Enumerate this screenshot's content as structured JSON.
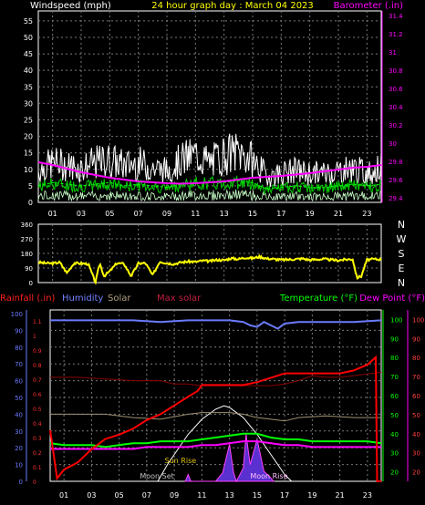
{
  "chart_data": [
    {
      "type": "line",
      "title": "24 hour graph day : March 04 2023",
      "ylabel": "Windspeed (mph)",
      "y2label": "Barometer (.in)",
      "ylim": [
        0,
        58
      ],
      "y2lim": [
        29.35,
        31.45
      ],
      "yticks": [
        0,
        5,
        10,
        15,
        20,
        25,
        30,
        35,
        40,
        45,
        50,
        55
      ],
      "y2ticks": [
        "29.4",
        "29.6",
        "29.8",
        "30",
        "30.2",
        "30.4",
        "30.6",
        "30.8",
        "31",
        "31.2",
        "31.4"
      ],
      "xlabels": [
        "01",
        "03",
        "05",
        "07",
        "09",
        "11",
        "13",
        "15",
        "17",
        "19",
        "21",
        "23"
      ],
      "grid": true,
      "colors": {
        "gust": "#ffffff",
        "avg": "#00cc00",
        "baro": "#ff00ff",
        "grid": "#7a7a7a",
        "axis": "#ffff00"
      },
      "series": [
        {
          "name": "",
          "kind": "gust",
          "x": [
            0,
            1,
            2,
            3,
            4,
            5,
            6,
            7,
            8,
            9,
            10,
            11,
            12,
            13,
            14,
            15,
            16,
            17,
            18,
            19,
            20,
            21,
            22,
            23,
            24
          ],
          "values": [
            12,
            15,
            14,
            13,
            15,
            16,
            14,
            15,
            13,
            12,
            16,
            18,
            15,
            18,
            19,
            16,
            10,
            11,
            12,
            11,
            11,
            12,
            13,
            11,
            13
          ]
        },
        {
          "name": "",
          "kind": "avg",
          "x": [
            0,
            1,
            2,
            3,
            4,
            5,
            6,
            7,
            8,
            9,
            10,
            11,
            12,
            13,
            14,
            15,
            16,
            17,
            18,
            19,
            20,
            21,
            22,
            23,
            24
          ],
          "values": [
            5,
            6,
            5.5,
            5,
            5.5,
            6,
            5,
            5.5,
            5,
            4.5,
            5.5,
            6,
            6,
            6,
            6.5,
            6,
            4,
            4.5,
            5,
            4.5,
            4.5,
            5,
            5.5,
            5,
            5.5
          ]
        },
        {
          "name": "",
          "kind": "baro",
          "axis": "y2",
          "x": [
            0,
            1,
            2,
            3,
            4,
            5,
            6,
            7,
            8,
            9,
            10,
            11,
            12,
            13,
            14,
            15,
            16,
            17,
            18,
            19,
            20,
            21,
            22,
            23,
            24
          ],
          "values": [
            29.79,
            29.76,
            29.72,
            29.68,
            29.65,
            29.62,
            29.6,
            29.58,
            29.57,
            29.56,
            29.555,
            29.56,
            29.57,
            29.58,
            29.6,
            29.62,
            29.63,
            29.64,
            29.655,
            29.67,
            29.69,
            29.71,
            29.73,
            29.74,
            29.76
          ]
        }
      ]
    },
    {
      "type": "line",
      "title": "",
      "ylim": [
        0,
        360
      ],
      "yticks": [
        0,
        90,
        180,
        270,
        360
      ],
      "direction_labels": [
        "N",
        "W",
        "S",
        "E",
        "N"
      ],
      "xlabels": [
        "01",
        "03",
        "05",
        "07",
        "09",
        "11",
        "13",
        "15",
        "17",
        "19",
        "21",
        "23"
      ],
      "colors": {
        "dir": "#ffff00"
      },
      "series": [
        {
          "name": "",
          "kind": "wind-direction",
          "x": [
            0,
            0.5,
            1,
            1.5,
            2,
            2.5,
            3,
            3.5,
            4,
            4.3,
            4.6,
            5,
            5.5,
            6,
            6.5,
            7,
            7.5,
            8,
            8.5,
            9,
            9.5,
            10,
            10.5,
            11,
            11.5,
            12,
            12.5,
            13,
            13.5,
            14,
            14.5,
            15,
            15.5,
            16,
            16.5,
            17,
            17.5,
            18,
            18.5,
            19,
            19.5,
            20,
            20.5,
            21,
            21.5,
            22,
            22.3,
            22.6,
            23,
            23.5,
            24
          ],
          "values": [
            125,
            120,
            118,
            125,
            60,
            120,
            118,
            115,
            0,
            120,
            40,
            70,
            120,
            115,
            40,
            118,
            120,
            45,
            130,
            120,
            115,
            125,
            130,
            128,
            135,
            132,
            140,
            138,
            150,
            145,
            155,
            150,
            160,
            148,
            145,
            140,
            142,
            145,
            148,
            140,
            143,
            145,
            140,
            138,
            142,
            145,
            30,
            40,
            140,
            145,
            143
          ]
        }
      ]
    },
    {
      "type": "line",
      "legend": [
        "Rainfall (.in)",
        "Humidity",
        "Solar",
        "Max solar",
        "Temperature (°F)",
        "Dew Point (°F)"
      ],
      "ylim_left": [
        0,
        100
      ],
      "yticks_left": [
        0,
        10,
        20,
        30,
        40,
        50,
        60,
        70,
        80,
        90,
        100
      ],
      "ylim_rain": [
        0,
        1.15
      ],
      "yticks_rain": [
        "0",
        "0.1",
        "0.2",
        "0.3",
        "0.4",
        "0.5",
        "0.6",
        "0.7",
        "0.8",
        "0.9",
        "1",
        "1.1"
      ],
      "ylim_temp": [
        15,
        105
      ],
      "yticks_temp": [
        20,
        30,
        40,
        50,
        60,
        70,
        80,
        90,
        100
      ],
      "yticks_temp2": [
        20,
        30,
        40,
        50,
        60,
        70,
        80,
        90,
        100
      ],
      "xlabels": [
        "01",
        "03",
        "05",
        "07",
        "09",
        "11",
        "13",
        "15",
        "17",
        "19",
        "21",
        "23"
      ],
      "annotations": [
        "Sun Rise",
        "Moon Set",
        "Moon Rise"
      ],
      "colors": {
        "rain": "#ff0000",
        "humidity": "#6b7bff",
        "solar": "#ffffff",
        "maxsolar": "#8b0000",
        "temp": "#00ff00",
        "dew": "#ff00ff",
        "uv": "#5a30d0"
      },
      "series": [
        {
          "name": "Humidity",
          "x": [
            0,
            2,
            4,
            6,
            8,
            10,
            12,
            13,
            14,
            14.5,
            15,
            15.5,
            16,
            16.5,
            17,
            18,
            20,
            22,
            24
          ],
          "values": [
            96,
            96,
            96,
            96,
            95,
            96,
            96,
            96,
            95,
            93,
            92,
            95,
            93,
            91,
            94,
            95,
            95,
            95,
            96
          ]
        },
        {
          "name": "Rainfall (.in)",
          "axis": "rain",
          "x": [
            0,
            0.5,
            1,
            2,
            3,
            4,
            5,
            6,
            7,
            8,
            9,
            10,
            10.7,
            11,
            12,
            13,
            14,
            15,
            16,
            17,
            18,
            19,
            20,
            21,
            22,
            23,
            23.6,
            23.7,
            24
          ],
          "values": [
            0.35,
            0.02,
            0.08,
            0.13,
            0.22,
            0.29,
            0.32,
            0.36,
            0.42,
            0.46,
            0.52,
            0.58,
            0.62,
            0.66,
            0.66,
            0.66,
            0.66,
            0.68,
            0.71,
            0.74,
            0.74,
            0.74,
            0.74,
            0.74,
            0.76,
            0.8,
            0.85,
            0,
            0
          ]
        },
        {
          "name": "Solar",
          "x": [
            0,
            2,
            4,
            6,
            8,
            10,
            11,
            12,
            13,
            14,
            15,
            16,
            17,
            18,
            20,
            22,
            24
          ],
          "values": [
            40,
            40,
            40,
            38,
            37,
            40,
            41,
            41,
            41,
            40,
            38,
            37,
            36,
            38,
            39,
            38,
            38
          ]
        },
        {
          "name": "Max solar",
          "x": [
            0,
            2,
            4,
            6,
            8,
            9,
            10,
            11,
            12,
            13,
            14,
            15,
            16,
            17,
            18,
            19,
            20,
            21,
            22,
            23,
            24
          ],
          "values": [
            62,
            62,
            61,
            60,
            60,
            58,
            58,
            57,
            57,
            57,
            57,
            57,
            57,
            58,
            60,
            63,
            62,
            62,
            63,
            64,
            65
          ]
        },
        {
          "name": "Temperature (°F)",
          "axis": "temp",
          "x": [
            0,
            1,
            2,
            3,
            4,
            5,
            6,
            7,
            8,
            9,
            10,
            11,
            12,
            13,
            14,
            15,
            16,
            17,
            18,
            19,
            20,
            21,
            22,
            23,
            24
          ],
          "values": [
            35,
            34,
            34,
            34,
            33,
            34,
            35,
            35,
            36,
            36,
            36,
            37,
            38,
            39,
            40,
            40,
            38,
            37,
            37,
            36,
            36,
            36,
            36,
            36,
            35
          ]
        },
        {
          "name": "Dew Point (°F)",
          "axis": "temp",
          "x": [
            0,
            1,
            2,
            3,
            4,
            5,
            6,
            7,
            8,
            9,
            10,
            11,
            12,
            13,
            14,
            15,
            16,
            17,
            18,
            19,
            20,
            21,
            22,
            23,
            24
          ],
          "values": [
            32,
            32,
            32,
            32,
            32,
            32,
            32,
            33,
            33,
            33,
            33,
            34,
            34,
            35,
            36,
            36,
            35,
            34,
            34,
            33,
            33,
            33,
            33,
            33,
            33
          ]
        },
        {
          "name": "",
          "kind": "solar-curve",
          "x": [
            7.8,
            8.5,
            9,
            10,
            11,
            12,
            12.6,
            13,
            14,
            15,
            16,
            16.5,
            17,
            17.5
          ],
          "values": [
            0,
            10,
            16,
            28,
            37,
            43,
            45,
            44,
            38,
            28,
            16,
            10,
            4,
            0
          ]
        },
        {
          "name": "",
          "kind": "uv-peaks",
          "x": [
            9.8,
            10,
            10.2,
            11,
            12,
            12.5,
            13,
            13.3,
            13.5,
            14,
            14.2,
            14.5,
            15,
            15.5,
            16,
            16.2
          ],
          "values": [
            0,
            4,
            0,
            0,
            0,
            5,
            22,
            5,
            0,
            8,
            28,
            10,
            25,
            6,
            2,
            0
          ]
        }
      ]
    }
  ]
}
